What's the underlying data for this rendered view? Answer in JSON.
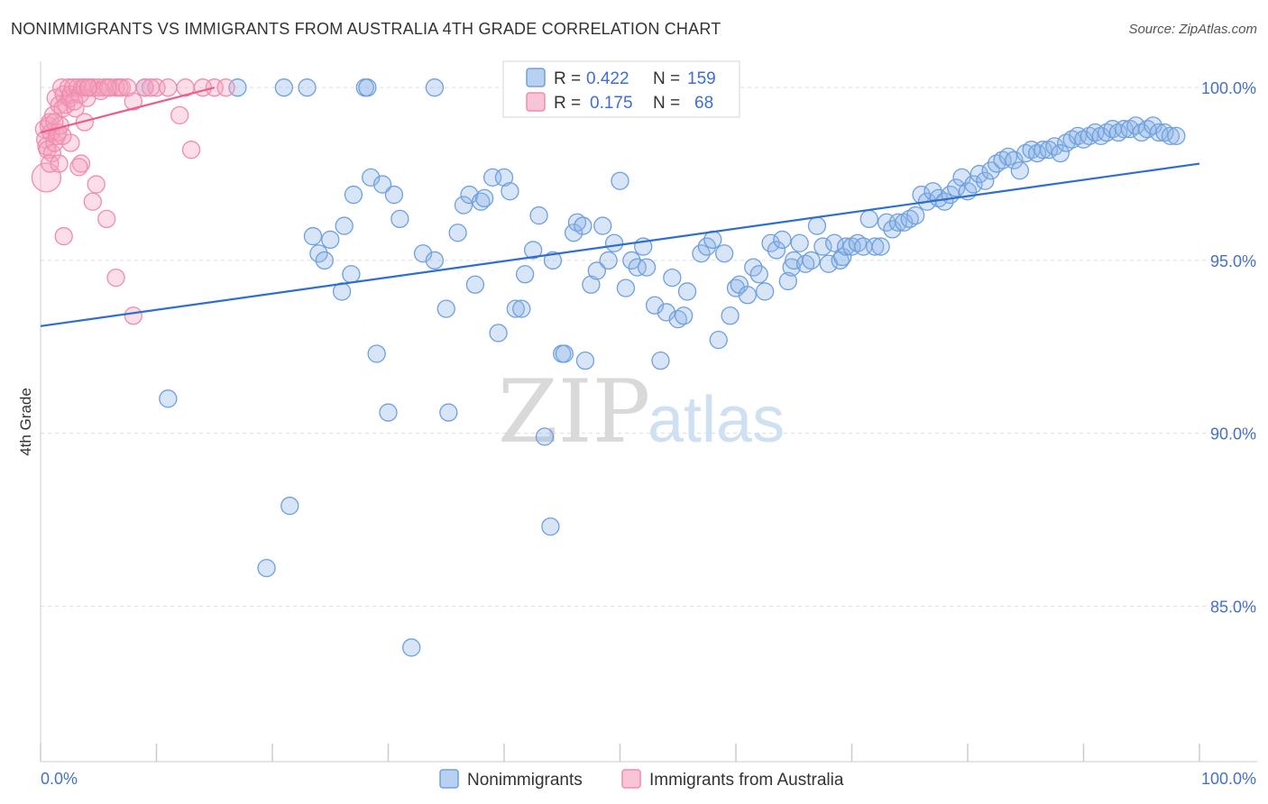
{
  "title": "NONIMMIGRANTS VS IMMIGRANTS FROM AUSTRALIA 4TH GRADE CORRELATION CHART",
  "source": "Source: ZipAtlas.com",
  "watermark": {
    "zip": "ZIP",
    "atlas": "atlas"
  },
  "colors": {
    "blue": "#6fa0dd",
    "blue_line": "#2f6fcb",
    "pink": "#f08cab",
    "pink_line": "#e8608a",
    "grid": "#dddddd"
  },
  "legend": {
    "rows": [
      {
        "r_label": "R =",
        "r_value": "0.422",
        "n_label": "N =",
        "n_value": "159"
      },
      {
        "r_label": "R =",
        "r_value": "0.175",
        "n_label": "N =",
        "n_value": "68"
      }
    ]
  },
  "chart_data": {
    "type": "scatter",
    "title": "NONIMMIGRANTS VS IMMIGRANTS FROM AUSTRALIA 4TH GRADE CORRELATION CHART",
    "ylabel": "4th Grade",
    "xlabel": "",
    "xlim": [
      0,
      100
    ],
    "ylim": [
      80.5,
      100.5
    ],
    "x_tick_labels": [
      "0.0%",
      "100.0%"
    ],
    "y_ticks": [
      85,
      90,
      95,
      100
    ],
    "y_tick_labels": [
      "85.0%",
      "90.0%",
      "95.0%",
      "100.0%"
    ],
    "grid": true,
    "legend_placement": "bottom-center",
    "series": [
      {
        "name": "Nonimmigrants",
        "color": "#6fa0dd",
        "trend": {
          "x": [
            0,
            100
          ],
          "y": [
            93.1,
            97.8
          ]
        },
        "points": [
          [
            9,
            100
          ],
          [
            17,
            100
          ],
          [
            21,
            100
          ],
          [
            23,
            100
          ],
          [
            28,
            100
          ],
          [
            28.2,
            100
          ],
          [
            34,
            100
          ],
          [
            11,
            91
          ],
          [
            19.5,
            86.1
          ],
          [
            21.5,
            87.9
          ],
          [
            23.5,
            95.7
          ],
          [
            24,
            95.2
          ],
          [
            24.5,
            95
          ],
          [
            25,
            95.6
          ],
          [
            26,
            94.1
          ],
          [
            26.2,
            96
          ],
          [
            26.8,
            94.6
          ],
          [
            27,
            96.9
          ],
          [
            28.5,
            97.4
          ],
          [
            29,
            92.3
          ],
          [
            29.5,
            97.2
          ],
          [
            30,
            90.6
          ],
          [
            30.5,
            96.9
          ],
          [
            31,
            96.2
          ],
          [
            32,
            83.8
          ],
          [
            33,
            95.2
          ],
          [
            34,
            95
          ],
          [
            35,
            93.6
          ],
          [
            35.2,
            90.6
          ],
          [
            36,
            95.8
          ],
          [
            36.5,
            96.6
          ],
          [
            37,
            96.9
          ],
          [
            37.5,
            94.3
          ],
          [
            38,
            96.7
          ],
          [
            38.3,
            96.8
          ],
          [
            39,
            97.4
          ],
          [
            39.5,
            92.9
          ],
          [
            40,
            97.4
          ],
          [
            40.5,
            97
          ],
          [
            41,
            93.6
          ],
          [
            41.5,
            93.6
          ],
          [
            41.8,
            94.6
          ],
          [
            42.5,
            95.3
          ],
          [
            43,
            96.3
          ],
          [
            43.5,
            89.9
          ],
          [
            44,
            87.3
          ],
          [
            44.2,
            95
          ],
          [
            45,
            92.3
          ],
          [
            45.2,
            92.3
          ],
          [
            46,
            95.8
          ],
          [
            46.3,
            96.1
          ],
          [
            46.8,
            96
          ],
          [
            47,
            92.1
          ],
          [
            47.5,
            94.3
          ],
          [
            48,
            94.7
          ],
          [
            48.5,
            96
          ],
          [
            49,
            95
          ],
          [
            49.5,
            95.5
          ],
          [
            50,
            97.3
          ],
          [
            50.5,
            94.2
          ],
          [
            51,
            95
          ],
          [
            51.5,
            94.8
          ],
          [
            52,
            95.4
          ],
          [
            52.3,
            94.8
          ],
          [
            53,
            93.7
          ],
          [
            53.5,
            92.1
          ],
          [
            54,
            93.5
          ],
          [
            54.5,
            94.5
          ],
          [
            55,
            93.3
          ],
          [
            55.5,
            93.4
          ],
          [
            55.8,
            94.1
          ],
          [
            57,
            95.2
          ],
          [
            57.5,
            95.4
          ],
          [
            58,
            95.6
          ],
          [
            58.5,
            92.7
          ],
          [
            59,
            95.2
          ],
          [
            59.5,
            93.4
          ],
          [
            60,
            94.2
          ],
          [
            60.3,
            94.3
          ],
          [
            61,
            94
          ],
          [
            61.5,
            94.8
          ],
          [
            62,
            94.6
          ],
          [
            62.5,
            94.1
          ],
          [
            63,
            95.5
          ],
          [
            63.5,
            95.3
          ],
          [
            64,
            95.6
          ],
          [
            64.5,
            94.4
          ],
          [
            64.8,
            94.8
          ],
          [
            65,
            95
          ],
          [
            65.5,
            95.5
          ],
          [
            66,
            94.9
          ],
          [
            66.5,
            95
          ],
          [
            67,
            96
          ],
          [
            67.5,
            95.4
          ],
          [
            68,
            94.9
          ],
          [
            68.5,
            95.5
          ],
          [
            69,
            95
          ],
          [
            69.2,
            95.1
          ],
          [
            69.5,
            95.4
          ],
          [
            70,
            95.4
          ],
          [
            70.5,
            95.5
          ],
          [
            71,
            95.4
          ],
          [
            71.5,
            96.2
          ],
          [
            72,
            95.4
          ],
          [
            72.5,
            95.4
          ],
          [
            73,
            96.1
          ],
          [
            73.5,
            95.9
          ],
          [
            74,
            96.1
          ],
          [
            74.5,
            96.1
          ],
          [
            75,
            96.2
          ],
          [
            75.5,
            96.3
          ],
          [
            76,
            96.9
          ],
          [
            76.5,
            96.7
          ],
          [
            77,
            97
          ],
          [
            77.5,
            96.8
          ],
          [
            78,
            96.7
          ],
          [
            78.5,
            96.9
          ],
          [
            79,
            97.1
          ],
          [
            79.5,
            97.4
          ],
          [
            80,
            97
          ],
          [
            80.5,
            97.2
          ],
          [
            81,
            97.5
          ],
          [
            81.5,
            97.3
          ],
          [
            82,
            97.6
          ],
          [
            82.5,
            97.8
          ],
          [
            83,
            97.9
          ],
          [
            83.5,
            98
          ],
          [
            84,
            97.9
          ],
          [
            84.5,
            97.6
          ],
          [
            85,
            98.1
          ],
          [
            85.5,
            98.2
          ],
          [
            86,
            98.1
          ],
          [
            86.5,
            98.2
          ],
          [
            87,
            98.2
          ],
          [
            87.5,
            98.3
          ],
          [
            88,
            98.1
          ],
          [
            88.5,
            98.4
          ],
          [
            89,
            98.5
          ],
          [
            89.5,
            98.6
          ],
          [
            90,
            98.5
          ],
          [
            90.5,
            98.6
          ],
          [
            91,
            98.7
          ],
          [
            91.5,
            98.6
          ],
          [
            92,
            98.7
          ],
          [
            92.5,
            98.8
          ],
          [
            93,
            98.7
          ],
          [
            93.5,
            98.8
          ],
          [
            94,
            98.8
          ],
          [
            94.5,
            98.9
          ],
          [
            95,
            98.7
          ],
          [
            95.5,
            98.8
          ],
          [
            96,
            98.9
          ],
          [
            96.5,
            98.7
          ],
          [
            97,
            98.7
          ],
          [
            97.5,
            98.6
          ],
          [
            98,
            98.6
          ]
        ]
      },
      {
        "name": "Immigrants from Australia",
        "color": "#f08cab",
        "trend": {
          "x": [
            0,
            15
          ],
          "y": [
            98.7,
            100
          ]
        },
        "points": [
          [
            0.3,
            98.8
          ],
          [
            0.4,
            98.5
          ],
          [
            0.5,
            98.3
          ],
          [
            0.5,
            97.4
          ],
          [
            0.6,
            98.2
          ],
          [
            0.7,
            98.9
          ],
          [
            0.8,
            99
          ],
          [
            0.9,
            98.7
          ],
          [
            1,
            98.1
          ],
          [
            1.1,
            99.2
          ],
          [
            1.2,
            98.4
          ],
          [
            1.3,
            99.7
          ],
          [
            1.4,
            98.6
          ],
          [
            1.5,
            98.7
          ],
          [
            1.6,
            99.5
          ],
          [
            1.7,
            98.9
          ],
          [
            1.8,
            100
          ],
          [
            1.9,
            99.4
          ],
          [
            2,
            99.8
          ],
          [
            2.2,
            99.5
          ],
          [
            2.4,
            100
          ],
          [
            2.5,
            99.7
          ],
          [
            2.6,
            99.8
          ],
          [
            2.8,
            100
          ],
          [
            3,
            99.4
          ],
          [
            3.2,
            100
          ],
          [
            3.4,
            99.8
          ],
          [
            3.5,
            97.8
          ],
          [
            3.6,
            100
          ],
          [
            3.8,
            100
          ],
          [
            4,
            99.7
          ],
          [
            4.2,
            100
          ],
          [
            4.5,
            100
          ],
          [
            4.8,
            97.2
          ],
          [
            5,
            100
          ],
          [
            5.5,
            100
          ],
          [
            5.7,
            96.2
          ],
          [
            6,
            100
          ],
          [
            6.5,
            100
          ],
          [
            7,
            100
          ],
          [
            8,
            99.6
          ],
          [
            9,
            100
          ],
          [
            10,
            100
          ],
          [
            12,
            99.2
          ],
          [
            15,
            100
          ],
          [
            2,
            95.7
          ],
          [
            3.3,
            97.7
          ],
          [
            4.5,
            96.7
          ],
          [
            6.5,
            94.5
          ],
          [
            8,
            93.4
          ],
          [
            13,
            98.2
          ],
          [
            0.8,
            97.8
          ],
          [
            1.6,
            97.8
          ],
          [
            2.6,
            98.4
          ],
          [
            3.8,
            99
          ],
          [
            5.2,
            99.9
          ],
          [
            6.8,
            100
          ],
          [
            7.5,
            100
          ],
          [
            11,
            100
          ],
          [
            12.5,
            100
          ],
          [
            14,
            100
          ],
          [
            16,
            100
          ],
          [
            1.2,
            99
          ],
          [
            1.9,
            98.6
          ],
          [
            2.9,
            99.6
          ],
          [
            4.1,
            100
          ],
          [
            5.8,
            100
          ],
          [
            9.5,
            100
          ]
        ]
      }
    ]
  },
  "bottom_legend": {
    "items": [
      {
        "label": "Nonimmigrants"
      },
      {
        "label": "Immigrants from Australia"
      }
    ]
  }
}
